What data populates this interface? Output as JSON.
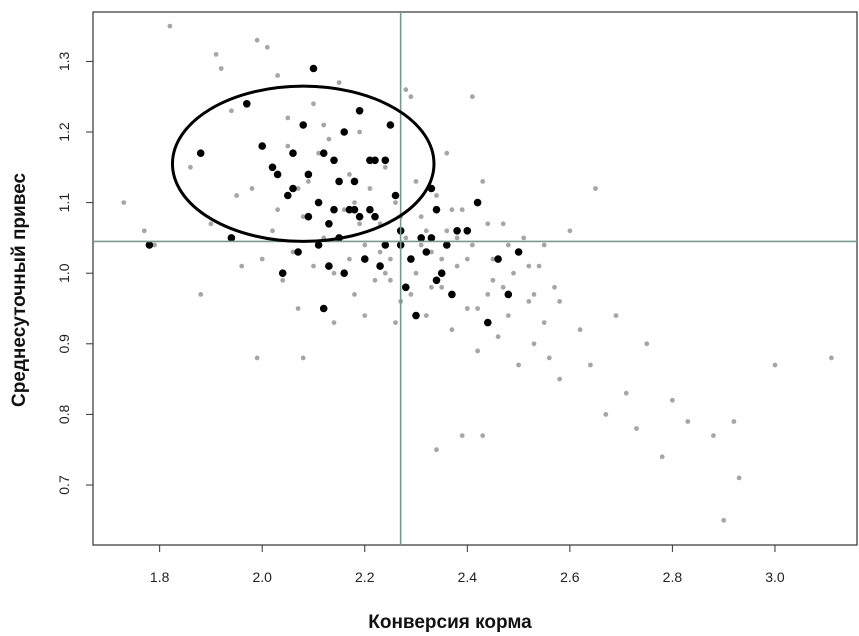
{
  "chart_data": {
    "type": "scatter",
    "xlabel": "Конверсия корма",
    "ylabel": "Среднесуточный привес",
    "xlim": [
      1.67,
      3.16
    ],
    "ylim": [
      0.615,
      1.37
    ],
    "x_ticks": [
      "1.8",
      "2.0",
      "2.2",
      "2.4",
      "2.6",
      "2.8",
      "3.0"
    ],
    "y_ticks": [
      "0.7",
      "0.8",
      "0.9",
      "1.0",
      "1.1",
      "1.2",
      "1.3"
    ],
    "grid": false,
    "reference_lines": {
      "vertical_x": 2.27,
      "horizontal_y": 1.045
    },
    "highlight_ellipse": {
      "center": [
        2.08,
        1.155
      ],
      "radius_x": 0.255,
      "radius_y": 0.11
    },
    "colors": {
      "population": "#a6a6a6",
      "highlighted": "#000000",
      "reference_line": "#7a9a90",
      "frame": "#333333"
    },
    "series": [
      {
        "style": "population",
        "points": [
          [
            1.73,
            1.1
          ],
          [
            1.77,
            1.06
          ],
          [
            1.79,
            1.04
          ],
          [
            1.82,
            1.35
          ],
          [
            1.86,
            1.15
          ],
          [
            1.88,
            0.97
          ],
          [
            1.91,
            1.31
          ],
          [
            1.92,
            1.29
          ],
          [
            1.9,
            1.07
          ],
          [
            1.94,
            1.23
          ],
          [
            1.96,
            1.01
          ],
          [
            1.95,
            1.11
          ],
          [
            1.98,
            1.12
          ],
          [
            1.99,
            1.33
          ],
          [
            2.01,
            1.32
          ],
          [
            2.03,
            1.28
          ],
          [
            2.02,
            1.06
          ],
          [
            2.04,
            0.99
          ],
          [
            2.05,
            1.22
          ],
          [
            2.06,
            1.03
          ],
          [
            2.07,
            0.95
          ],
          [
            2.08,
            0.88
          ],
          [
            2.09,
            1.13
          ],
          [
            2.1,
            1.24
          ],
          [
            2.11,
            1.17
          ],
          [
            2.12,
            1.05
          ],
          [
            2.13,
            1.19
          ],
          [
            2.14,
            0.93
          ],
          [
            2.15,
            1.27
          ],
          [
            2.16,
            1.09
          ],
          [
            2.17,
            1.14
          ],
          [
            2.18,
            0.97
          ],
          [
            2.19,
            1.2
          ],
          [
            2.2,
            1.04
          ],
          [
            2.21,
            1.12
          ],
          [
            2.22,
            0.99
          ],
          [
            2.23,
            1.07
          ],
          [
            2.24,
            1.15
          ],
          [
            2.25,
            1.02
          ],
          [
            2.26,
            1.1
          ],
          [
            2.27,
            0.96
          ],
          [
            2.28,
            1.05
          ],
          [
            2.29,
            1.25
          ],
          [
            2.3,
            1.0
          ],
          [
            2.31,
            1.08
          ],
          [
            2.32,
            0.94
          ],
          [
            2.33,
            1.03
          ],
          [
            2.34,
            1.11
          ],
          [
            2.35,
            0.98
          ],
          [
            2.36,
            1.06
          ],
          [
            2.37,
            0.92
          ],
          [
            2.38,
            1.01
          ],
          [
            2.39,
            1.09
          ],
          [
            2.4,
            0.95
          ],
          [
            2.41,
            1.04
          ],
          [
            2.42,
            0.89
          ],
          [
            2.43,
            1.13
          ],
          [
            2.44,
            0.97
          ],
          [
            2.45,
            1.02
          ],
          [
            2.46,
            0.91
          ],
          [
            2.47,
            1.07
          ],
          [
            2.48,
            0.94
          ],
          [
            2.49,
            1.0
          ],
          [
            2.5,
            0.87
          ],
          [
            2.51,
            1.05
          ],
          [
            2.52,
            0.96
          ],
          [
            2.53,
            0.9
          ],
          [
            2.54,
            1.01
          ],
          [
            2.55,
            0.93
          ],
          [
            2.56,
            0.88
          ],
          [
            2.57,
            0.98
          ],
          [
            2.58,
            0.85
          ],
          [
            2.6,
            1.06
          ],
          [
            2.62,
            0.92
          ],
          [
            2.64,
            0.87
          ],
          [
            2.65,
            1.12
          ],
          [
            2.67,
            0.8
          ],
          [
            2.69,
            0.94
          ],
          [
            2.71,
            0.83
          ],
          [
            2.73,
            0.78
          ],
          [
            2.75,
            0.9
          ],
          [
            2.78,
            0.74
          ],
          [
            2.8,
            0.82
          ],
          [
            2.83,
            0.79
          ],
          [
            2.88,
            0.77
          ],
          [
            2.9,
            0.65
          ],
          [
            2.92,
            0.79
          ],
          [
            2.93,
            0.71
          ],
          [
            3.0,
            0.87
          ],
          [
            3.11,
            0.88
          ],
          [
            2.43,
            0.77
          ],
          [
            2.39,
            0.77
          ],
          [
            2.34,
            0.75
          ],
          [
            2.41,
            1.25
          ],
          [
            2.53,
            0.97
          ],
          [
            2.28,
            1.26
          ],
          [
            1.99,
            0.88
          ],
          [
            2.2,
            0.94
          ],
          [
            2.14,
            1.0
          ],
          [
            2.08,
            1.08
          ],
          [
            2.02,
            1.15
          ],
          [
            2.12,
            1.21
          ],
          [
            2.17,
            1.02
          ],
          [
            2.24,
            1.0
          ],
          [
            2.3,
            1.13
          ],
          [
            2.36,
            1.17
          ],
          [
            2.33,
            0.98
          ],
          [
            2.26,
            0.93
          ],
          [
            2.18,
            1.1
          ],
          [
            2.1,
            1.01
          ],
          [
            2.05,
            1.18
          ],
          [
            2.22,
            1.16
          ],
          [
            2.4,
            1.02
          ],
          [
            2.45,
            0.99
          ],
          [
            2.48,
            1.04
          ],
          [
            2.52,
            1.01
          ],
          [
            2.44,
            1.07
          ],
          [
            2.38,
            1.05
          ],
          [
            2.35,
            1.02
          ],
          [
            2.31,
            1.04
          ],
          [
            2.27,
            1.08
          ],
          [
            2.23,
            1.03
          ],
          [
            2.19,
            1.07
          ],
          [
            2.15,
            1.05
          ],
          [
            2.11,
            1.1
          ],
          [
            2.07,
            1.12
          ],
          [
            2.03,
            1.09
          ],
          [
            2.0,
            1.02
          ],
          [
            2.25,
            0.99
          ],
          [
            2.29,
            0.97
          ],
          [
            2.32,
            1.06
          ],
          [
            2.37,
            1.09
          ],
          [
            2.42,
            0.95
          ],
          [
            2.47,
            0.98
          ],
          [
            2.55,
            1.04
          ],
          [
            2.58,
            0.96
          ]
        ]
      },
      {
        "style": "highlighted",
        "points": [
          [
            1.78,
            1.04
          ],
          [
            1.88,
            1.17
          ],
          [
            1.94,
            1.05
          ],
          [
            1.97,
            1.24
          ],
          [
            2.0,
            1.18
          ],
          [
            2.02,
            1.15
          ],
          [
            2.04,
            1.0
          ],
          [
            2.05,
            1.11
          ],
          [
            2.06,
            1.17
          ],
          [
            2.08,
            1.21
          ],
          [
            2.09,
            1.14
          ],
          [
            2.1,
            1.29
          ],
          [
            2.11,
            1.1
          ],
          [
            2.12,
            1.17
          ],
          [
            2.13,
            1.07
          ],
          [
            2.14,
            1.16
          ],
          [
            2.15,
            1.05
          ],
          [
            2.16,
            1.2
          ],
          [
            2.17,
            1.09
          ],
          [
            2.18,
            1.13
          ],
          [
            2.19,
            1.08
          ],
          [
            2.2,
            1.02
          ],
          [
            2.21,
            1.16
          ],
          [
            2.22,
            1.08
          ],
          [
            2.23,
            1.01
          ],
          [
            2.24,
            1.16
          ],
          [
            2.25,
            1.21
          ],
          [
            2.26,
            1.11
          ],
          [
            2.27,
            1.06
          ],
          [
            2.28,
            0.98
          ],
          [
            2.29,
            1.02
          ],
          [
            2.3,
            0.94
          ],
          [
            2.31,
            1.05
          ],
          [
            2.32,
            1.03
          ],
          [
            2.33,
            1.12
          ],
          [
            2.34,
            1.09
          ],
          [
            2.35,
            1.0
          ],
          [
            2.36,
            1.04
          ],
          [
            2.37,
            0.97
          ],
          [
            2.38,
            1.06
          ],
          [
            2.4,
            1.06
          ],
          [
            2.42,
            1.1
          ],
          [
            2.44,
            0.93
          ],
          [
            2.46,
            1.02
          ],
          [
            2.48,
            0.97
          ],
          [
            2.5,
            1.03
          ],
          [
            2.12,
            0.95
          ],
          [
            2.13,
            1.01
          ],
          [
            2.16,
            1.0
          ],
          [
            2.07,
            1.03
          ],
          [
            2.03,
            1.14
          ],
          [
            2.19,
            1.23
          ],
          [
            2.11,
            1.04
          ],
          [
            2.24,
            1.04
          ],
          [
            2.18,
            1.09
          ],
          [
            2.15,
            1.13
          ],
          [
            2.21,
            1.09
          ],
          [
            2.27,
            1.04
          ],
          [
            2.33,
            1.05
          ],
          [
            2.34,
            0.99
          ],
          [
            2.09,
            1.08
          ],
          [
            2.14,
            1.09
          ],
          [
            2.22,
            1.16
          ],
          [
            2.06,
            1.12
          ]
        ]
      }
    ]
  }
}
